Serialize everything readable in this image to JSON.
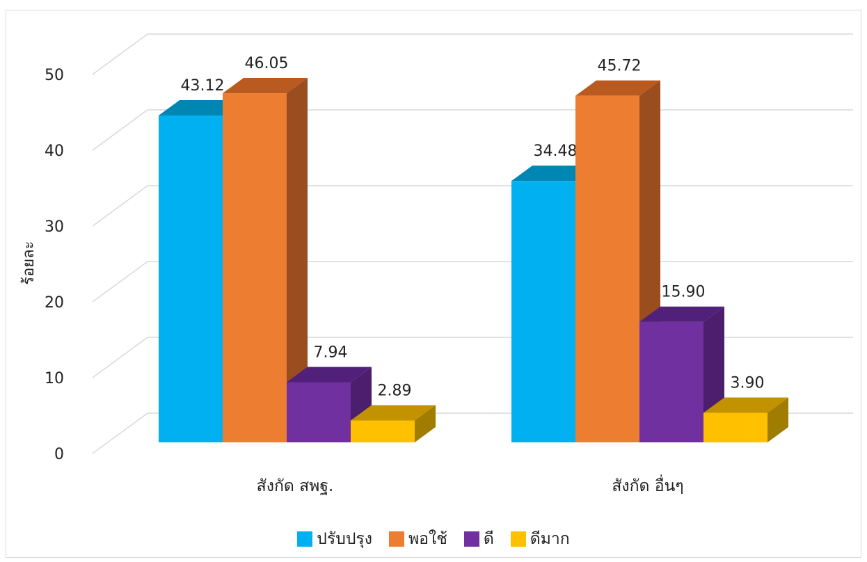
{
  "chart_data": {
    "type": "bar",
    "ylabel": "ร้อยละ",
    "ylim": [
      0,
      50
    ],
    "yticks": [
      0,
      10,
      20,
      30,
      40,
      50
    ],
    "grid": true,
    "legend_position": "bottom",
    "categories": [
      "สังกัด สพฐ.",
      "สังกัด อื่นๆ"
    ],
    "series": [
      {
        "name": "ปรับปรุง",
        "values": [
          43.12,
          34.48
        ],
        "labels": [
          "43.12",
          "34.48"
        ],
        "color": "#00b0f0",
        "top": "#0086b3",
        "side": "#0086b3"
      },
      {
        "name": "พอใช้",
        "values": [
          46.05,
          45.72
        ],
        "labels": [
          "46.05",
          "45.72"
        ],
        "color": "#ed7d31",
        "top": "#b95a20",
        "side": "#9a4d1e"
      },
      {
        "name": "ดี",
        "values": [
          7.94,
          15.9
        ],
        "labels": [
          "7.94",
          "15.90"
        ],
        "color": "#7030a0",
        "top": "#50207a",
        "side": "#4b1f6e"
      },
      {
        "name": "ดีมาก",
        "values": [
          2.89,
          3.9
        ],
        "labels": [
          "2.89",
          "3.90"
        ],
        "color": "#ffc000",
        "top": "#c29200",
        "side": "#a07c00"
      }
    ]
  }
}
